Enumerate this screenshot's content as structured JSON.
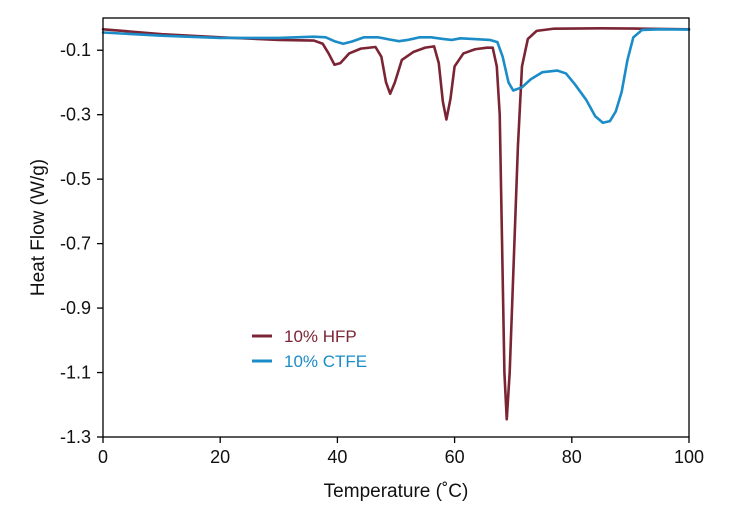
{
  "chart_data": {
    "type": "line",
    "xlabel": "Temperature (˚C)",
    "ylabel": "Heat Flow (W/g)",
    "xlim": [
      0,
      100
    ],
    "ylim": [
      -1.3,
      0.0
    ],
    "x_ticks": [
      0,
      20,
      40,
      60,
      80,
      100
    ],
    "x_tick_labels": [
      "0",
      "20",
      "40",
      "60",
      "80",
      "100"
    ],
    "y_ticks": [
      -0.1,
      -0.3,
      -0.5,
      -0.7,
      -0.9,
      -1.1,
      -1.3
    ],
    "y_tick_labels": [
      "-0.1",
      "-0.3",
      "-0.5",
      "-0.7",
      "-0.9",
      "-1.1",
      "-1.3"
    ],
    "grid": false,
    "legend_position": "lower-left",
    "series": [
      {
        "name": "10% HFP",
        "color": "#7b2434",
        "points": [
          [
            0,
            -0.035
          ],
          [
            10,
            -0.05
          ],
          [
            20,
            -0.06
          ],
          [
            30,
            -0.068
          ],
          [
            36,
            -0.07
          ],
          [
            37.5,
            -0.08
          ],
          [
            38.5,
            -0.11
          ],
          [
            39.5,
            -0.145
          ],
          [
            40.5,
            -0.14
          ],
          [
            42,
            -0.11
          ],
          [
            44,
            -0.095
          ],
          [
            46.5,
            -0.09
          ],
          [
            47.5,
            -0.12
          ],
          [
            48.3,
            -0.2
          ],
          [
            49,
            -0.235
          ],
          [
            49.8,
            -0.2
          ],
          [
            51,
            -0.13
          ],
          [
            53,
            -0.105
          ],
          [
            55,
            -0.092
          ],
          [
            56.5,
            -0.088
          ],
          [
            57.3,
            -0.14
          ],
          [
            58,
            -0.26
          ],
          [
            58.6,
            -0.315
          ],
          [
            59.3,
            -0.25
          ],
          [
            60,
            -0.15
          ],
          [
            61.5,
            -0.11
          ],
          [
            63.5,
            -0.097
          ],
          [
            65.5,
            -0.092
          ],
          [
            66.5,
            -0.092
          ],
          [
            67.2,
            -0.15
          ],
          [
            67.7,
            -0.3
          ],
          [
            68.1,
            -0.7
          ],
          [
            68.5,
            -1.1
          ],
          [
            68.9,
            -1.245
          ],
          [
            69.4,
            -1.1
          ],
          [
            70,
            -0.8
          ],
          [
            70.8,
            -0.4
          ],
          [
            71.5,
            -0.15
          ],
          [
            72.5,
            -0.065
          ],
          [
            74,
            -0.04
          ],
          [
            77,
            -0.033
          ],
          [
            85,
            -0.032
          ],
          [
            92,
            -0.033
          ],
          [
            100,
            -0.035
          ]
        ]
      },
      {
        "name": "10% CTFE",
        "color": "#1b8cc7",
        "points": [
          [
            0,
            -0.045
          ],
          [
            10,
            -0.055
          ],
          [
            20,
            -0.062
          ],
          [
            30,
            -0.062
          ],
          [
            36,
            -0.058
          ],
          [
            38,
            -0.06
          ],
          [
            39.5,
            -0.072
          ],
          [
            41,
            -0.08
          ],
          [
            42.5,
            -0.073
          ],
          [
            44.5,
            -0.06
          ],
          [
            47,
            -0.06
          ],
          [
            49,
            -0.067
          ],
          [
            50.5,
            -0.072
          ],
          [
            52,
            -0.068
          ],
          [
            54,
            -0.06
          ],
          [
            56,
            -0.06
          ],
          [
            58,
            -0.065
          ],
          [
            59.5,
            -0.068
          ],
          [
            61,
            -0.063
          ],
          [
            63,
            -0.065
          ],
          [
            66,
            -0.068
          ],
          [
            67.3,
            -0.075
          ],
          [
            68.2,
            -0.12
          ],
          [
            69.2,
            -0.2
          ],
          [
            70,
            -0.225
          ],
          [
            71.5,
            -0.215
          ],
          [
            73,
            -0.19
          ],
          [
            75,
            -0.168
          ],
          [
            77.5,
            -0.163
          ],
          [
            79,
            -0.172
          ],
          [
            80.5,
            -0.205
          ],
          [
            82.5,
            -0.255
          ],
          [
            84,
            -0.305
          ],
          [
            85.3,
            -0.325
          ],
          [
            86.5,
            -0.32
          ],
          [
            87.5,
            -0.29
          ],
          [
            88.5,
            -0.23
          ],
          [
            89.5,
            -0.13
          ],
          [
            90.5,
            -0.06
          ],
          [
            92,
            -0.037
          ],
          [
            95,
            -0.035
          ],
          [
            100,
            -0.036
          ]
        ]
      }
    ]
  }
}
